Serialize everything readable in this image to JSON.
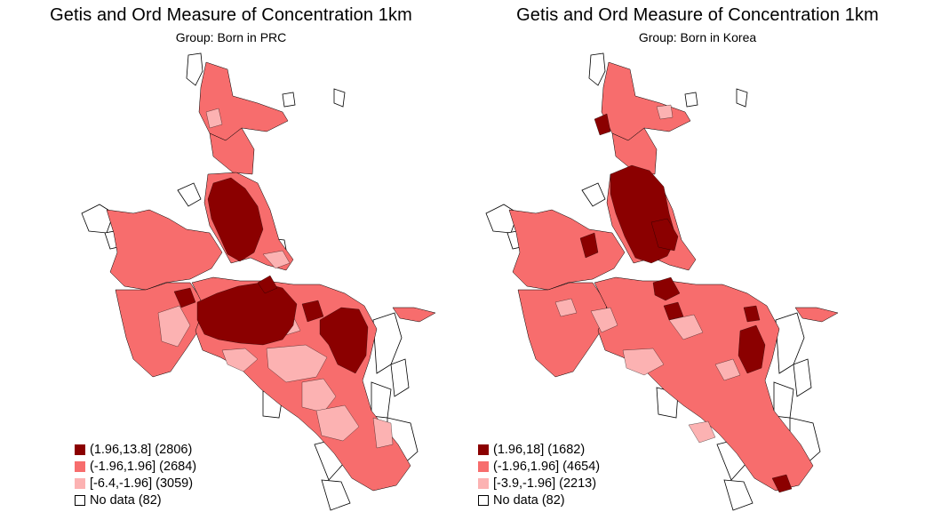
{
  "colors": {
    "high": "#8b0000",
    "mid": "#f76d6d",
    "low": "#fcb2b2",
    "nodata": "#ffffff",
    "outline": "#000000"
  },
  "maps": [
    {
      "title": "Getis and Ord Measure of Concentration 1km",
      "subtitle": "Group: Born in PRC",
      "legend": [
        {
          "class": "high",
          "label": "(1.96,13.8] (2806)"
        },
        {
          "class": "mid",
          "label": "(-1.96,1.96] (2684)"
        },
        {
          "class": "low",
          "label": "[-6.4,-1.96] (3059)"
        },
        {
          "class": "nodata",
          "label": "No data (82)"
        }
      ]
    },
    {
      "title": "Getis and Ord Measure of Concentration 1km",
      "subtitle": "Group: Born in Korea",
      "legend": [
        {
          "class": "high",
          "label": "(1.96,18] (1682)"
        },
        {
          "class": "mid",
          "label": "(-1.96,1.96] (4654)"
        },
        {
          "class": "low",
          "label": "[-3.9,-1.96] (2213)"
        },
        {
          "class": "nodata",
          "label": "No data (82)"
        }
      ]
    }
  ]
}
